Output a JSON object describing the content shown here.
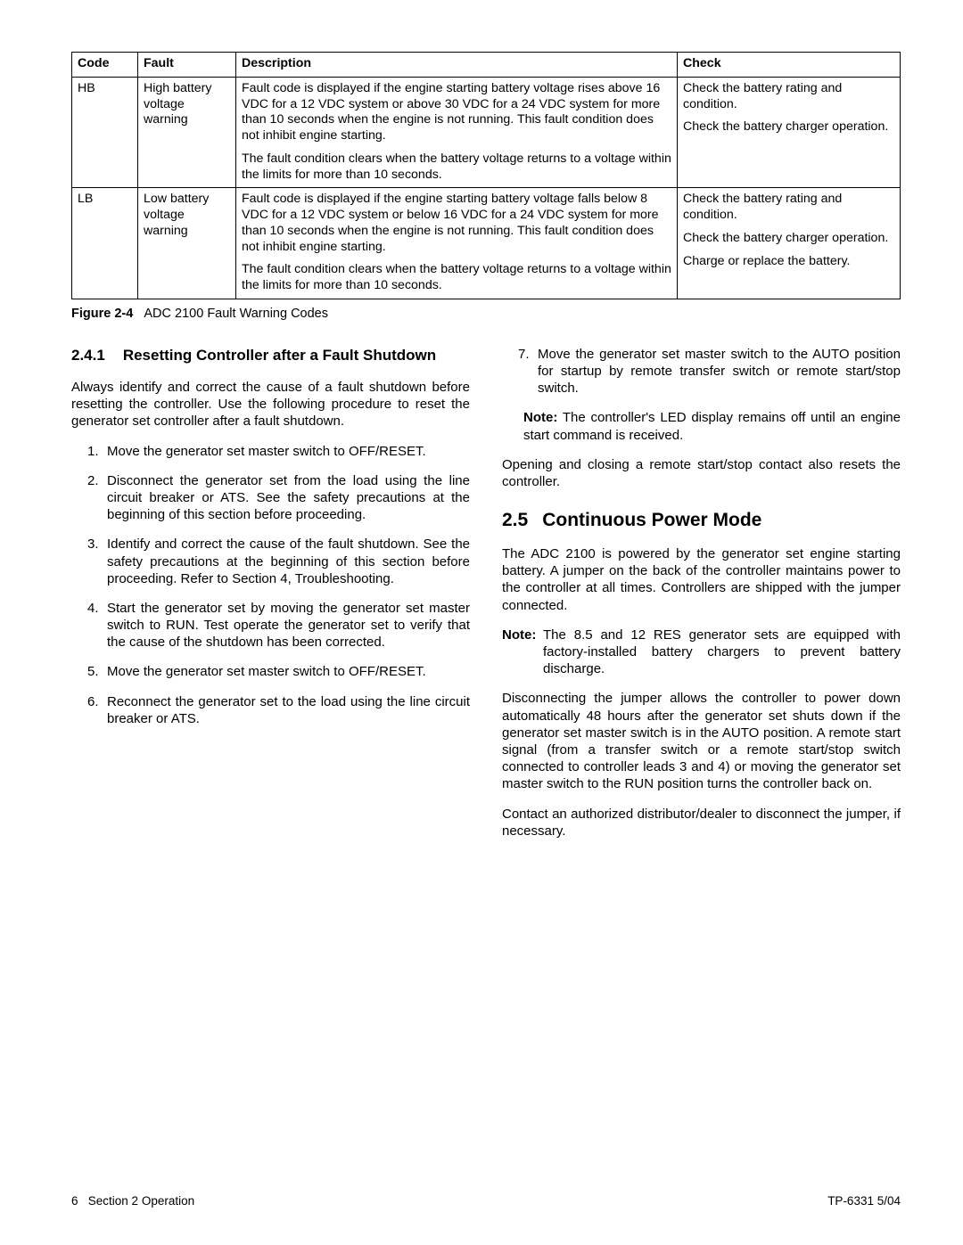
{
  "table": {
    "headers": {
      "code": "Code",
      "fault": "Fault",
      "desc": "Description",
      "check": "Check"
    },
    "rows": [
      {
        "code": "HB",
        "fault": "High battery voltage warning",
        "desc1": "Fault code is displayed if the engine starting battery voltage rises above 16 VDC for a 12 VDC system or above 30 VDC for a 24 VDC system for more than 10 seconds when the engine is not running.  This fault condition does not inhibit engine starting.",
        "desc2": "The fault condition clears when the battery voltage returns to a voltage within the limits for more than 10 seconds.",
        "check1": "Check the battery rating and condition.",
        "check2": "Check the battery charger operation.",
        "check3": ""
      },
      {
        "code": "LB",
        "fault": "Low battery voltage warning",
        "desc1": "Fault code is displayed if the engine starting battery voltage falls below 8 VDC for a 12 VDC system or below 16 VDC for a 24 VDC system for more than 10 seconds when the engine is not running. This fault condition does not inhibit engine starting.",
        "desc2": "The fault condition clears when the battery voltage returns to a voltage within the limits for more than 10 seconds.",
        "check1": "Check the battery rating and condition.",
        "check2": "Check the battery charger operation.",
        "check3": "Charge or replace the battery."
      }
    ]
  },
  "figure": {
    "label": "Figure 2-4",
    "caption": "ADC 2100 Fault Warning Codes"
  },
  "s241": {
    "num": "2.4.1",
    "title": "Resetting Controller after a Fault Shutdown",
    "intro": "Always identify and correct the cause of a fault shutdown before resetting the controller.  Use the following procedure to reset the generator set controller after a fault shutdown.",
    "steps": [
      "Move the generator set master switch to OFF/RESET.",
      "Disconnect the generator set from the load using the line circuit breaker or ATS.  See the safety precautions at the beginning of this section before proceeding.",
      "Identify and correct the cause of the fault shutdown.  See the safety precautions at the beginning of this section before proceeding.  Refer to Section 4, Troubleshooting.",
      "Start the generator set by moving the generator set master switch to RUN.  Test operate the generator set to verify that the cause of the shutdown has been corrected.",
      "Move the generator set master switch to OFF/RESET.",
      "Reconnect the generator set to the load using the line circuit breaker or ATS.",
      "Move the generator set master switch to the AUTO position for startup by remote transfer switch or remote start/stop switch."
    ],
    "note_label": "Note:",
    "note": "The controller's LED display remains off until an engine start command is received.",
    "closing": "Opening and closing a remote start/stop contact also resets the controller."
  },
  "s25": {
    "num": "2.5",
    "title": "Continuous Power Mode",
    "p1": "The ADC 2100 is powered by the generator set engine starting battery.  A jumper on the back of the controller maintains power to the controller at all times. Controllers are shipped with the jumper connected.",
    "note_label": "Note:",
    "note": "The 8.5 and 12 RES generator sets are equipped with factory-installed battery chargers to prevent battery discharge.",
    "p2": "Disconnecting the jumper allows the controller to power down automatically 48 hours after the generator set shuts down if the generator set master switch is in the AUTO position.  A remote start signal (from a transfer switch or a remote start/stop switch connected to controller leads 3 and 4) or moving the generator set master switch to the RUN position turns the controller back on.",
    "p3": "Contact an authorized distributor/dealer to disconnect the jumper, if necessary."
  },
  "footer": {
    "page": "6",
    "section": "Section 2 Operation",
    "doc": "TP-6331  5/04"
  }
}
